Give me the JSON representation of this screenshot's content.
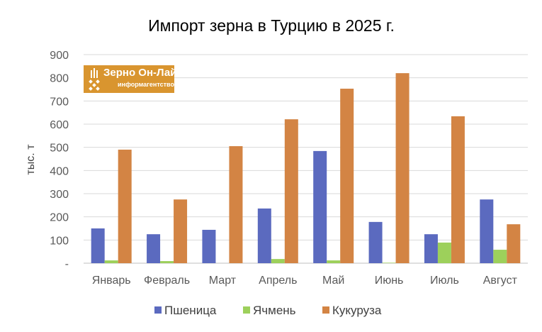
{
  "chart_data": {
    "type": "bar",
    "title": "Импорт зерна в Турцию в 2025 г.",
    "xlabel": "",
    "ylabel": "тыс. т",
    "ylim": [
      0,
      900
    ],
    "yticks": [
      0,
      100,
      200,
      300,
      400,
      500,
      600,
      700,
      800,
      900
    ],
    "ytick_labels": [
      "-",
      "100",
      "200",
      "300",
      "400",
      "500",
      "600",
      "700",
      "800",
      "900"
    ],
    "grid": true,
    "legend_position": "bottom",
    "categories": [
      "Январь",
      "Февраль",
      "Март",
      "Апрель",
      "Май",
      "Июнь",
      "Июль",
      "Август"
    ],
    "series": [
      {
        "name": "Пшеница",
        "color": "#5b6abf",
        "values": [
          150,
          125,
          144,
          236,
          484,
          178,
          125,
          275
        ]
      },
      {
        "name": "Ячмень",
        "color": "#9dd05b",
        "values": [
          12,
          9,
          0,
          18,
          12,
          2,
          89,
          58
        ]
      },
      {
        "name": "Кукуруза",
        "color": "#d38444",
        "values": [
          490,
          275,
          505,
          621,
          753,
          820,
          634,
          168
        ]
      }
    ]
  },
  "logo": {
    "title": "Зерно Он-Лайн",
    "subtitle": "информагентство"
  }
}
